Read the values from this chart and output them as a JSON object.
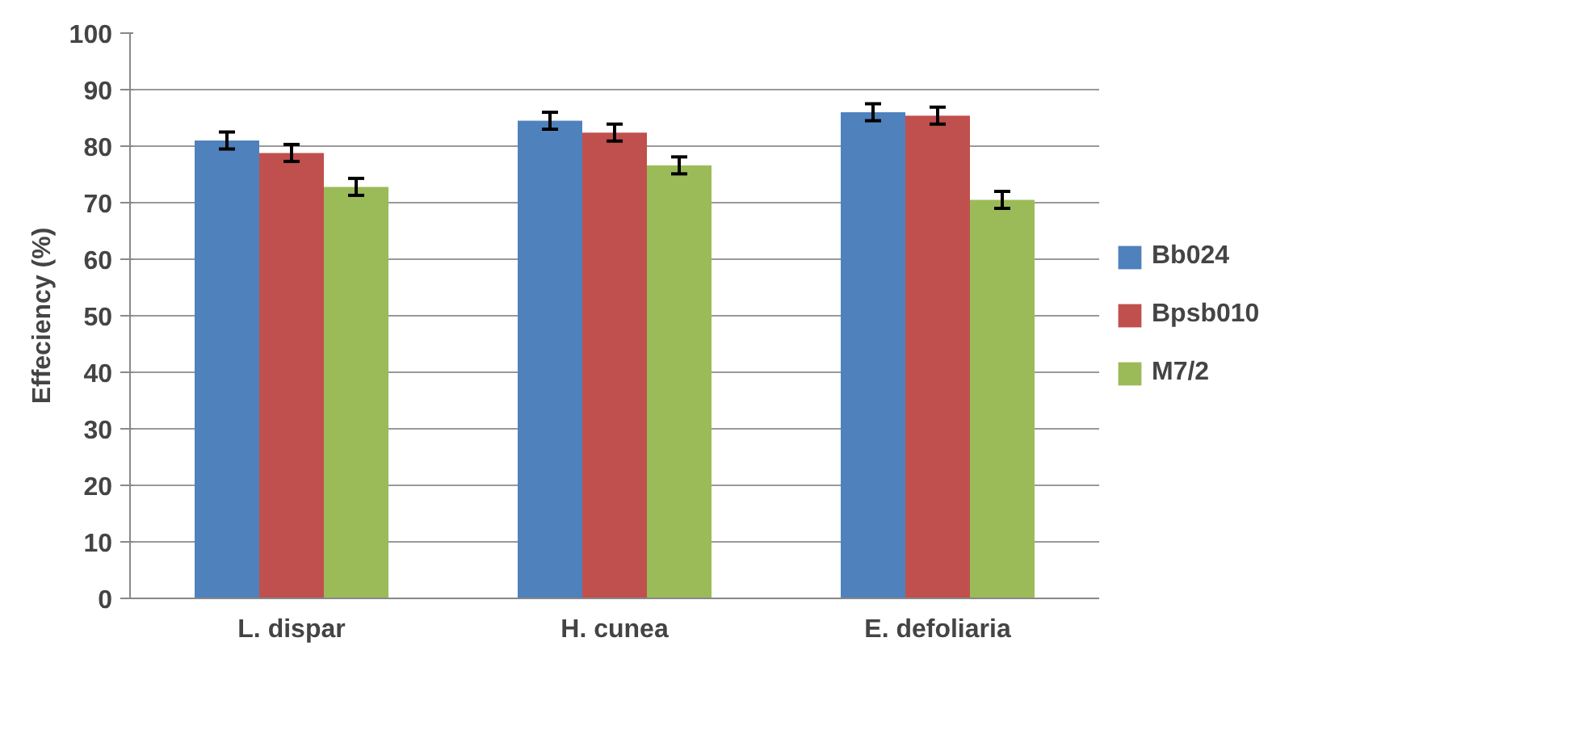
{
  "chart_data": {
    "type": "bar",
    "ylabel": "Effeciency (%)",
    "categories": [
      "L. dispar",
      "H. cunea",
      "E. defoliaria"
    ],
    "series": [
      {
        "name": "Bb024",
        "color": "#4f81bd",
        "values": [
          81.0,
          84.5,
          86.0
        ],
        "errors": [
          1.5,
          1.5,
          1.5
        ]
      },
      {
        "name": "Bpsb010",
        "color": "#c0504d",
        "values": [
          78.8,
          82.4,
          85.4
        ],
        "errors": [
          1.5,
          1.5,
          1.5
        ]
      },
      {
        "name": "M7/2",
        "color": "#9bbb59",
        "values": [
          72.8,
          76.6,
          70.5
        ],
        "errors": [
          1.5,
          1.5,
          1.5
        ]
      }
    ],
    "ylim": [
      0,
      100
    ],
    "yticks": [
      0,
      10,
      20,
      30,
      40,
      50,
      60,
      70,
      80,
      90,
      100
    ],
    "grid": "y",
    "legend": "right"
  }
}
